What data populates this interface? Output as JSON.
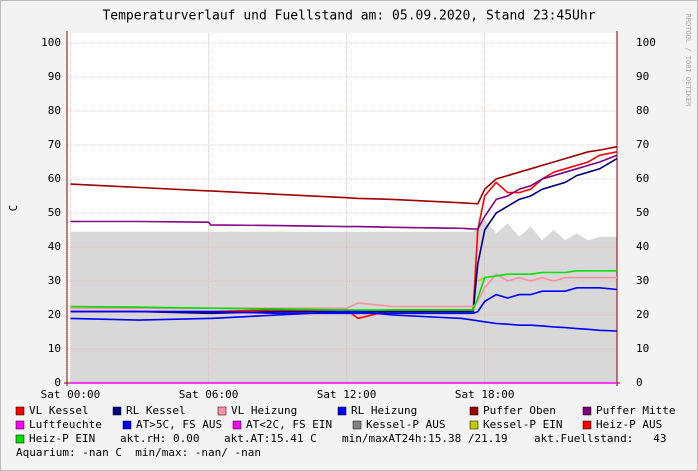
{
  "chart_data": {
    "type": "line",
    "title": "Temperaturverlauf und Fuellstand am: 05.09.2020, Stand 23:45Uhr",
    "y_label": "C",
    "watermark": "RRDTOOL / TOBI OETIKER",
    "x": [
      0,
      3,
      6,
      6.1,
      9,
      12,
      12.5,
      14,
      17,
      17.5,
      17.7,
      18,
      18.5,
      19,
      19.5,
      20,
      20.5,
      21,
      21.5,
      22,
      22.5,
      23,
      23.75
    ],
    "xlim": [
      -0.15,
      23.75
    ],
    "xticks": [
      {
        "value": 0,
        "label": "Sat 00:00"
      },
      {
        "value": 6,
        "label": "Sat 06:00"
      },
      {
        "value": 12,
        "label": "Sat 12:00"
      },
      {
        "value": 18,
        "label": "Sat 18:00"
      }
    ],
    "ylim": [
      0,
      100
    ],
    "yticks": [
      0,
      10,
      20,
      30,
      40,
      50,
      60,
      70,
      80,
      90,
      100
    ],
    "grid": true,
    "area": {
      "color": "#d8d8d8",
      "values": [
        44.5,
        44.5,
        44.5,
        44.5,
        44.5,
        44.5,
        44.5,
        44.5,
        44.5,
        44.5,
        46,
        48,
        44,
        47,
        43,
        46,
        42,
        45,
        42,
        44,
        42,
        43,
        43
      ]
    },
    "series": [
      {
        "name": "VL Kessel",
        "color": "#ff0000",
        "values": [
          21,
          21,
          21,
          21,
          21.5,
          21.5,
          19,
          21.5,
          21.5,
          21.5,
          45,
          55,
          59,
          56,
          56,
          57,
          60,
          62,
          63,
          64,
          65,
          67,
          68
        ]
      },
      {
        "name": "RL Kessel",
        "color": "#000080",
        "values": [
          21,
          21,
          20.5,
          20.5,
          21,
          21,
          21,
          21,
          21,
          21,
          35,
          45,
          50,
          52,
          54,
          55,
          57,
          58,
          59,
          61,
          62,
          63,
          66
        ]
      },
      {
        "name": "VL Heizung",
        "color": "#ff8fa3",
        "values": [
          22,
          22,
          22,
          22,
          22,
          22,
          23.5,
          22.5,
          22.5,
          22.5,
          24,
          28,
          32,
          30,
          31,
          30,
          31,
          30,
          31,
          31,
          31,
          31,
          31
        ]
      },
      {
        "name": "RL Heizung",
        "color": "#0000ff",
        "values": [
          21,
          21,
          21,
          21,
          20.5,
          20.5,
          20.5,
          20.5,
          20.5,
          20.5,
          21,
          24,
          26,
          25,
          26,
          26,
          27,
          27,
          27,
          28,
          28,
          28,
          27.5
        ]
      },
      {
        "name": "Puffer Oben",
        "color": "#a00000",
        "values": [
          58.5,
          57.5,
          56.5,
          56.5,
          55.5,
          54.5,
          54.3,
          54,
          53,
          52.8,
          52.7,
          57,
          60,
          61,
          62,
          63,
          64,
          65,
          66,
          67,
          68,
          68.5,
          69.5
        ]
      },
      {
        "name": "Puffer Mitte",
        "color": "#800080",
        "values": [
          47.5,
          47.5,
          47.3,
          46.5,
          46.3,
          46,
          46,
          45.8,
          45.5,
          45.3,
          45.3,
          49,
          54,
          55,
          57,
          58,
          60,
          61,
          62,
          63,
          64,
          65,
          67
        ]
      },
      {
        "name": "Luftfeuchte",
        "color": "#ff00ff",
        "values": [
          0,
          0,
          0,
          0,
          0,
          0,
          0,
          0,
          0,
          0,
          0,
          0,
          0,
          0,
          0,
          0,
          0,
          0,
          0,
          0,
          0,
          0,
          0
        ]
      },
      {
        "name": "AT>5C, FS AUS",
        "color": "#0000ff",
        "values": [
          19,
          18.5,
          19,
          19,
          20,
          21,
          21,
          20,
          19,
          18.5,
          18.3,
          18,
          17.5,
          17.3,
          17,
          17,
          16.8,
          16.5,
          16.3,
          16,
          15.8,
          15.5,
          15.3
        ]
      },
      {
        "name": "AT<2C, FS EIN",
        "color": "#ff00ff",
        "values": [
          null,
          null,
          null,
          null,
          null,
          null,
          null,
          null,
          null,
          null,
          null,
          null,
          null,
          null,
          null,
          null,
          null,
          null,
          null,
          null,
          null,
          null,
          null
        ]
      },
      {
        "name": "Kessel-P AUS",
        "color": "#808080",
        "values": [
          null,
          null,
          null,
          null,
          null,
          null,
          null,
          null,
          null,
          null,
          null,
          null,
          null,
          null,
          null,
          null,
          null,
          null,
          null,
          null,
          null,
          null,
          null
        ]
      },
      {
        "name": "Kessel-P EIN",
        "color": "#c8c800",
        "values": [
          null,
          null,
          null,
          null,
          null,
          null,
          null,
          null,
          null,
          null,
          30,
          31,
          null,
          null,
          null,
          null,
          null,
          null,
          null,
          null,
          null,
          null,
          null
        ]
      },
      {
        "name": "Heiz-P AUS",
        "color": "#ff0000",
        "values": [
          null,
          null,
          null,
          null,
          null,
          null,
          null,
          null,
          null,
          null,
          null,
          null,
          null,
          null,
          null,
          null,
          null,
          null,
          null,
          null,
          null,
          null,
          null
        ]
      },
      {
        "name": "Heiz-P EIN",
        "color": "#00e000",
        "values": [
          22.5,
          22.3,
          22,
          22,
          21.8,
          21.5,
          21.5,
          21.5,
          21.5,
          21.5,
          25,
          31,
          31.5,
          32,
          32,
          32,
          32.5,
          32.5,
          32.5,
          33,
          33,
          33,
          33
        ]
      }
    ],
    "info": [
      "akt.rH: 0.00",
      "akt.AT:15.41 C",
      "min/maxAT24h:15.38 /21.19",
      "akt.Fuellstand:   43",
      "Aquarium: -nan C  min/max: -nan/ -nan"
    ]
  }
}
